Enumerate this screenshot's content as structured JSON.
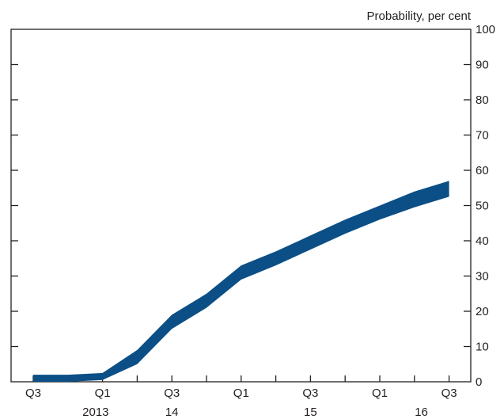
{
  "chart_data": {
    "type": "area",
    "title": "",
    "xlabel": "",
    "ylabel": "Probability, per cent",
    "ylim": [
      0,
      100
    ],
    "yticks": [
      "0",
      "10",
      "20",
      "30",
      "40",
      "50",
      "60",
      "70",
      "80",
      "90",
      "100"
    ],
    "x_ticks": [
      "Q3",
      "Q1",
      "Q3",
      "Q1",
      "Q3",
      "Q1",
      "Q3"
    ],
    "year_labels": [
      "2013",
      "14",
      "15",
      "16"
    ],
    "x": [
      "2013 Q3",
      "2013 Q4",
      "2014 Q1",
      "2014 Q2",
      "2014 Q3",
      "2014 Q4",
      "2015 Q1",
      "2015 Q2",
      "2015 Q3",
      "2015 Q4",
      "2016 Q1",
      "2016 Q2",
      "2016 Q3"
    ],
    "series": [
      {
        "lower": [
          0,
          0,
          0.5,
          5,
          15,
          21,
          29,
          33,
          37.5,
          42,
          46,
          49.5,
          52.5
        ],
        "upper": [
          2,
          2,
          2.5,
          9,
          19,
          25,
          33,
          37,
          41.5,
          46,
          50,
          54,
          57
        ],
        "color": "#0b4f86"
      }
    ],
    "grid": false,
    "legend": "none"
  }
}
